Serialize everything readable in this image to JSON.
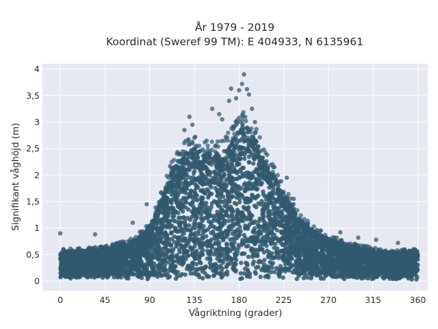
{
  "chart_data": {
    "type": "scatter",
    "title_lines": [
      "År 1979 - 2019",
      "Koordinat (Sweref 99 TM): E 404933, N 6135961"
    ],
    "xlabel": "Vågriktning (grader)",
    "ylabel": "Signifikant våghöjd (m)",
    "xlim": [
      -18,
      370
    ],
    "ylim": [
      -0.18,
      4.1
    ],
    "x_ticks": [
      0,
      45,
      90,
      135,
      180,
      225,
      270,
      315,
      360
    ],
    "x_tick_labels": [
      "0",
      "45",
      "90",
      "135",
      "180",
      "225",
      "270",
      "315",
      "360"
    ],
    "y_ticks": [
      0,
      0.5,
      1,
      1.5,
      2,
      2.5,
      3,
      3.5,
      4
    ],
    "y_tick_labels": [
      "0",
      "0,5",
      "1",
      "1,5",
      "2",
      "2,5",
      "3",
      "3,5",
      "4"
    ],
    "grid": true,
    "colors": {
      "marker": "#31596f",
      "plot_background": "#e6e9f2",
      "grid": "#ffffff"
    },
    "point_cloud_profile": {
      "direction": [
        0,
        45,
        70,
        90,
        100,
        112,
        125,
        135,
        150,
        165,
        175,
        185,
        195,
        205,
        215,
        225,
        240,
        255,
        270,
        300,
        330,
        360
      ],
      "dense_upper_height": [
        0.55,
        0.6,
        0.72,
        1.0,
        1.45,
        2.1,
        2.4,
        2.5,
        2.4,
        2.45,
        2.7,
        3.0,
        2.75,
        2.3,
        2.0,
        1.65,
        1.2,
        0.95,
        0.8,
        0.62,
        0.55,
        0.55
      ]
    },
    "outlier_points": [
      {
        "x": 0,
        "y": 0.9
      },
      {
        "x": 35,
        "y": 0.88
      },
      {
        "x": 73,
        "y": 1.1
      },
      {
        "x": 87,
        "y": 1.45
      },
      {
        "x": 125,
        "y": 2.85
      },
      {
        "x": 130,
        "y": 3.1
      },
      {
        "x": 133,
        "y": 2.95
      },
      {
        "x": 153,
        "y": 3.25
      },
      {
        "x": 160,
        "y": 3.15
      },
      {
        "x": 163,
        "y": 3.05
      },
      {
        "x": 170,
        "y": 3.4
      },
      {
        "x": 172,
        "y": 3.63
      },
      {
        "x": 177,
        "y": 3.45
      },
      {
        "x": 180,
        "y": 3.6
      },
      {
        "x": 183,
        "y": 3.72
      },
      {
        "x": 185,
        "y": 3.9
      },
      {
        "x": 188,
        "y": 3.62
      },
      {
        "x": 190,
        "y": 3.52
      },
      {
        "x": 193,
        "y": 3.25
      },
      {
        "x": 196,
        "y": 3.0
      },
      {
        "x": 228,
        "y": 1.95
      },
      {
        "x": 235,
        "y": 1.55
      },
      {
        "x": 245,
        "y": 1.1
      },
      {
        "x": 262,
        "y": 0.95
      },
      {
        "x": 282,
        "y": 0.92
      },
      {
        "x": 300,
        "y": 0.82
      },
      {
        "x": 318,
        "y": 0.78
      },
      {
        "x": 340,
        "y": 0.72
      },
      {
        "x": 357,
        "y": 0.6
      }
    ]
  }
}
